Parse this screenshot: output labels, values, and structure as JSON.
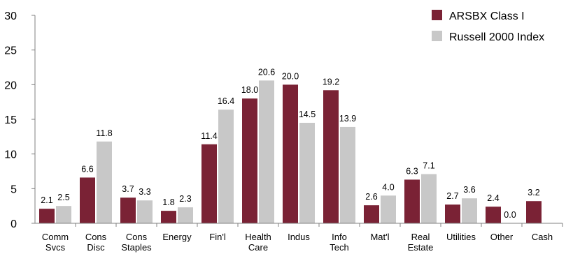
{
  "colors": {
    "series_1": "#7a2235",
    "series_2": "#c8c8c8",
    "axis": "#808080"
  },
  "chart_data": {
    "type": "bar",
    "categories": [
      [
        "Comm",
        "Svcs"
      ],
      [
        "Cons",
        "Disc"
      ],
      [
        "Cons",
        "Staples"
      ],
      [
        "Energy"
      ],
      [
        "Fin'l"
      ],
      [
        "Health",
        "Care"
      ],
      [
        "Indus"
      ],
      [
        "Info",
        "Tech"
      ],
      [
        "Mat'l"
      ],
      [
        "Real",
        "Estate"
      ],
      [
        "Utilities"
      ],
      [
        "Other"
      ],
      [
        "Cash"
      ]
    ],
    "series": [
      {
        "name": "ARSBX Class I",
        "values": [
          2.1,
          6.6,
          3.7,
          1.8,
          11.4,
          18.0,
          20.0,
          19.2,
          2.6,
          6.3,
          2.7,
          2.4,
          3.2
        ]
      },
      {
        "name": "Russell 2000 Index",
        "values": [
          2.5,
          11.8,
          3.3,
          2.3,
          16.4,
          20.6,
          14.5,
          13.9,
          4.0,
          7.1,
          3.6,
          0.0,
          null
        ]
      }
    ],
    "data_labels": [
      [
        "2.1",
        "6.6",
        "3.7",
        "1.8",
        "11.4",
        "18.0",
        "20.0",
        "19.2",
        "2.6",
        "6.3",
        "2.7",
        "2.4",
        "3.2"
      ],
      [
        "2.5",
        "11.8",
        "3.3",
        "2.3",
        "16.4",
        "20.6",
        "14.5",
        "13.9",
        "4.0",
        "7.1",
        "3.6",
        "0.0",
        ""
      ]
    ],
    "y_ticks": [
      "0",
      "5",
      "10",
      "15",
      "20",
      "25",
      "30"
    ],
    "ylim": [
      0,
      30
    ],
    "grid": false,
    "legend_position": "top-right"
  }
}
